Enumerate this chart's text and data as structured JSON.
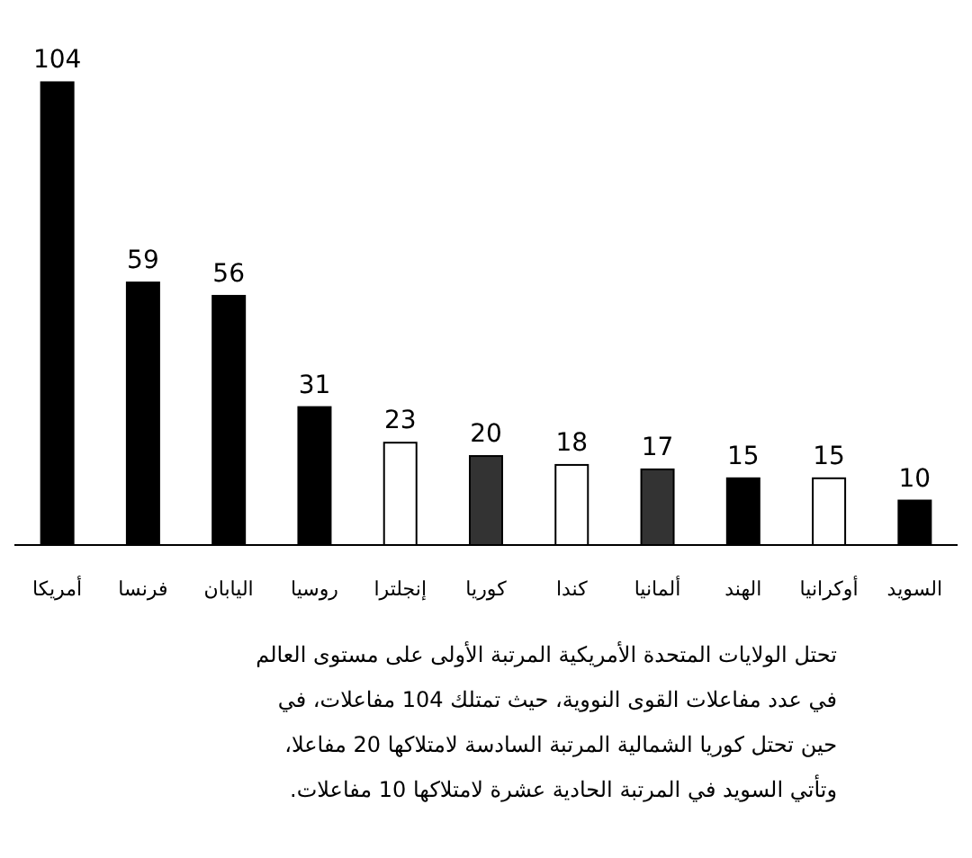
{
  "chart_data": {
    "type": "bar",
    "categories": [
      "أمريكا",
      "فرنسا",
      "اليابان",
      "روسيا",
      "إنجلترا",
      "كوريا",
      "كندا",
      "ألمانيا",
      "الهند",
      "أوكرانيا",
      "السويد"
    ],
    "values": [
      104,
      59,
      56,
      31,
      23,
      20,
      18,
      17,
      15,
      15,
      10
    ],
    "colors": [
      "#000000",
      "#000000",
      "#000000",
      "#000000",
      "#ffffff",
      "#333333",
      "#ffffff",
      "#333333",
      "#000000",
      "#ffffff",
      "#000000"
    ],
    "data_labels": true,
    "annotations": [
      "تحتل الولايات المتحدة الأمريكية المرتبة الأولى على مستوى العالم",
      "في عدد مفاعلات القوى النووية، حيث تمتلك 104 مفاعلات، في",
      "حين تحتل كوريا الشمالية المرتبة السادسة لامتلاكها 20 مفاعلا،",
      "وتأتي السويد في المرتبة الحادية عشرة لامتلاكها 10 مفاعلات."
    ]
  }
}
